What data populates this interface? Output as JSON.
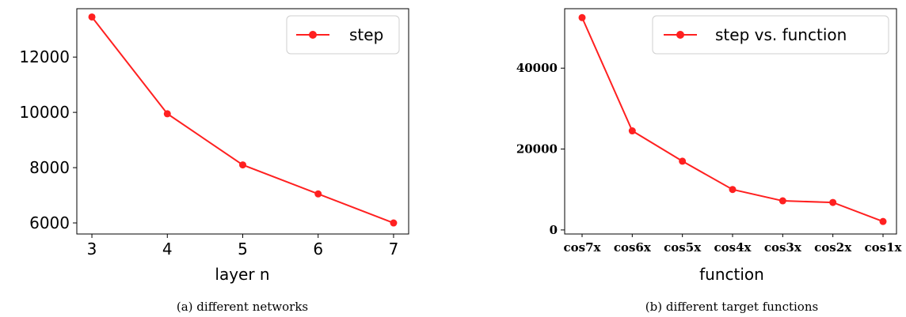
{
  "chart_data": [
    {
      "type": "line",
      "caption": "(a) different networks",
      "xlabel": "layer n",
      "ylabel": "",
      "x": [
        3,
        4,
        5,
        6,
        7
      ],
      "xticks": [
        "3",
        "4",
        "5",
        "6",
        "7"
      ],
      "yticks": [
        6000,
        8000,
        10000,
        12000
      ],
      "ytick_labels": [
        "6000",
        "8000",
        "10000",
        "12000"
      ],
      "xlim": [
        2.8,
        7.2
      ],
      "ylim": [
        5600,
        13750
      ],
      "legend_position": "top-right",
      "series": [
        {
          "name": "step",
          "color": "#ff2020",
          "values": [
            13450,
            9950,
            8100,
            7050,
            6000
          ]
        }
      ]
    },
    {
      "type": "line",
      "caption": "(b) different target functions",
      "xlabel": "function",
      "ylabel": "",
      "categories": [
        "cos7x",
        "cos6x",
        "cos5x",
        "cos4x",
        "cos3x",
        "cos2x",
        "cos1x"
      ],
      "yticks": [
        0,
        20000,
        40000
      ],
      "ytick_labels": [
        "0",
        "20000",
        "40000"
      ],
      "ylim": [
        -1000,
        54700
      ],
      "legend_position": "top-right",
      "series": [
        {
          "name": "step vs. function",
          "color": "#ff2020",
          "values": [
            52500,
            24500,
            17000,
            10000,
            7200,
            6800,
            2100
          ]
        }
      ]
    }
  ]
}
